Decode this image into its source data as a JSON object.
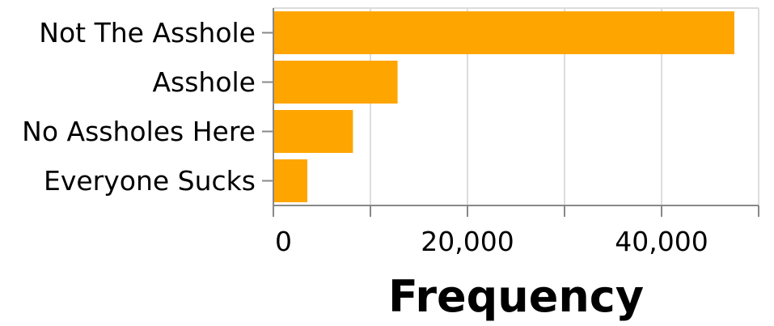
{
  "chart_data": {
    "type": "bar",
    "orientation": "horizontal",
    "categories": [
      "Not The Asshole",
      "Asshole",
      "No Assholes Here",
      "Everyone Sucks"
    ],
    "values": [
      47500,
      12800,
      8200,
      3500
    ],
    "xlabel": "Frequency",
    "ylabel": "",
    "xlim": [
      0,
      50000
    ],
    "xticks": [
      0,
      10000,
      20000,
      30000,
      40000,
      50000
    ],
    "xtick_labels": [
      "0",
      "",
      "20,000",
      "",
      "40,000",
      ""
    ],
    "grid": true,
    "bar_color": "#ffa500",
    "grid_color": "#dddddd",
    "axis_color": "#888888"
  }
}
